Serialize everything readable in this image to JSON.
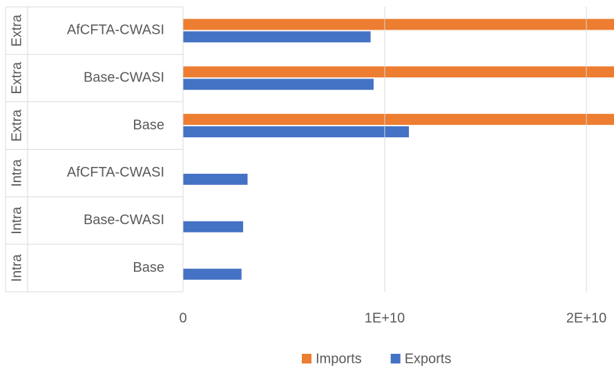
{
  "chart_data": {
    "type": "hbar",
    "groups": [
      "Extra",
      "Extra",
      "Extra",
      "Intra",
      "Intra",
      "Intra"
    ],
    "categories": [
      "AfCFTA-CWASI",
      "Base-CWASI",
      "Base",
      "AfCFTA-CWASI",
      "Base-CWASI",
      "Base"
    ],
    "series": [
      {
        "name": "Imports",
        "color": "#ed7d31",
        "values": [
          22000000000,
          22000000000,
          22000000000,
          0,
          0,
          0
        ]
      },
      {
        "name": "Exports",
        "color": "#4472c4",
        "values": [
          9300000000,
          9450000000,
          11200000000,
          3200000000,
          2980000000,
          2900000000
        ]
      }
    ],
    "xlim": [
      0,
      21400000000
    ],
    "xticks": [
      0,
      {
        "value": 10000000000,
        "label": "1E+10"
      },
      {
        "value": 20000000000,
        "label": "2E+10"
      }
    ],
    "grid": true,
    "legend": "bottom"
  }
}
